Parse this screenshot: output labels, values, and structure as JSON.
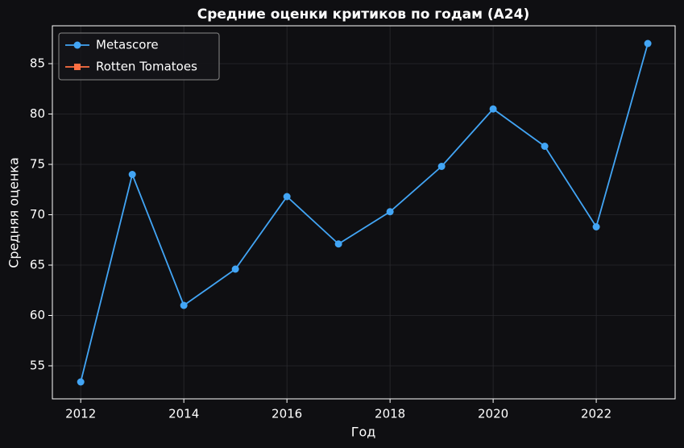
{
  "chart_data": {
    "type": "line",
    "title": "Средние оценки критиков по годам (A24)",
    "xlabel": "Год",
    "ylabel": "Средняя оценка",
    "x": [
      2012,
      2013,
      2014,
      2015,
      2016,
      2017,
      2018,
      2019,
      2020,
      2021,
      2022,
      2023
    ],
    "series": [
      {
        "name": "Metascore",
        "color": "#42a5f5",
        "marker": "circle",
        "values": [
          53.4,
          74.0,
          61.0,
          64.6,
          71.8,
          67.1,
          70.3,
          74.8,
          80.5,
          76.8,
          68.8,
          87.0
        ]
      },
      {
        "name": "Rotten Tomatoes",
        "color": "#ff7043",
        "marker": "square",
        "values": [
          null,
          null,
          null,
          null,
          null,
          null,
          null,
          null,
          null,
          null,
          null,
          null
        ]
      }
    ],
    "xlim": [
      2011.45,
      2023.53
    ],
    "xticks": [
      2012,
      2014,
      2016,
      2018,
      2020,
      2022
    ],
    "ylim": [
      51.72,
      88.76
    ],
    "yticks": [
      55,
      60,
      65,
      70,
      75,
      80,
      85
    ],
    "grid": true,
    "legend": "upper left"
  }
}
